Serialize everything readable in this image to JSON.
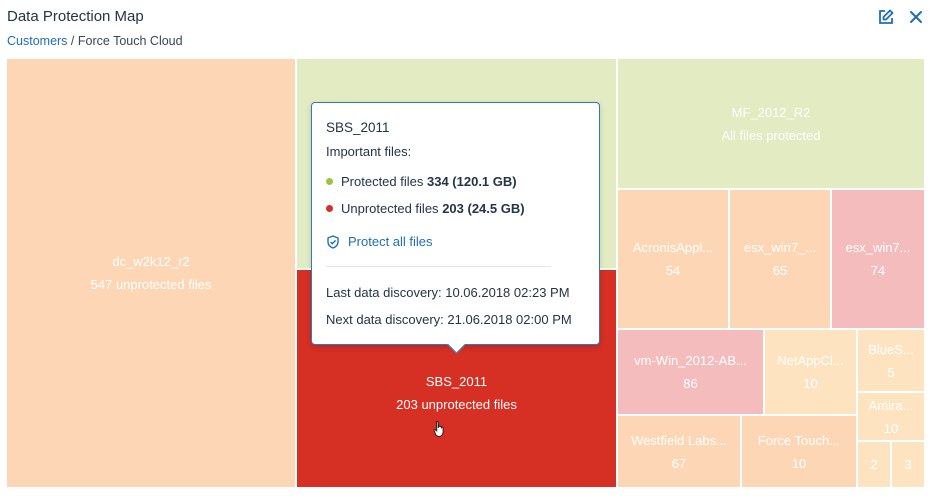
{
  "header": {
    "title": "Data Protection Map",
    "breadcrumb": {
      "root": "Customers",
      "separator": "/",
      "current": "Force Touch Cloud"
    },
    "edit_icon": "pencil-edit-icon",
    "close_icon": "close-icon"
  },
  "colors": {
    "orange": "#fdd6b5",
    "green": "#e2ebc2",
    "pink": "#f4bcbc",
    "pale_orange": "#fde3bf",
    "red": "#d62f24",
    "protected_dot": "#9bc53d",
    "unprotected_dot": "#d62f24"
  },
  "tiles": [
    {
      "name": "dc_w2k12_r2",
      "sub": "547 unprotected files"
    },
    {
      "name": "",
      "sub": ""
    },
    {
      "name": "SBS_2011",
      "sub": "203 unprotected files"
    },
    {
      "name": "MF_2012_R2",
      "sub": "All files protected"
    },
    {
      "name": "AcronisAppl...",
      "sub": "54"
    },
    {
      "name": "esx_win7_...",
      "sub": "65"
    },
    {
      "name": "esx_win7...",
      "sub": "74"
    },
    {
      "name": "vm-Win_2012-AB...",
      "sub": "86"
    },
    {
      "name": "NetAppCl...",
      "sub": "10"
    },
    {
      "name": "BlueS...",
      "sub": "5"
    },
    {
      "name": "Amira...",
      "sub": "10"
    },
    {
      "name": "Westfield Labs...",
      "sub": "67"
    },
    {
      "name": "Force Touch...",
      "sub": "10"
    },
    {
      "name": "",
      "sub": "2"
    },
    {
      "name": "",
      "sub": "3"
    }
  ],
  "tooltip": {
    "title": "SBS_2011",
    "subtitle": "Important files:",
    "protected": {
      "label": "Protected files",
      "value": "334 (120.1 GB)"
    },
    "unprotected": {
      "label": "Unprotected files",
      "value": "203 (24.5 GB)"
    },
    "action": "Protect all files",
    "action_icon": "shield-check-icon",
    "last_discovery": "Last data discovery: 10.06.2018 02:23 PM",
    "next_discovery": "Next data discovery: 21.06.2018 02:00 PM"
  },
  "cursor_icon": "hand-pointer-icon"
}
